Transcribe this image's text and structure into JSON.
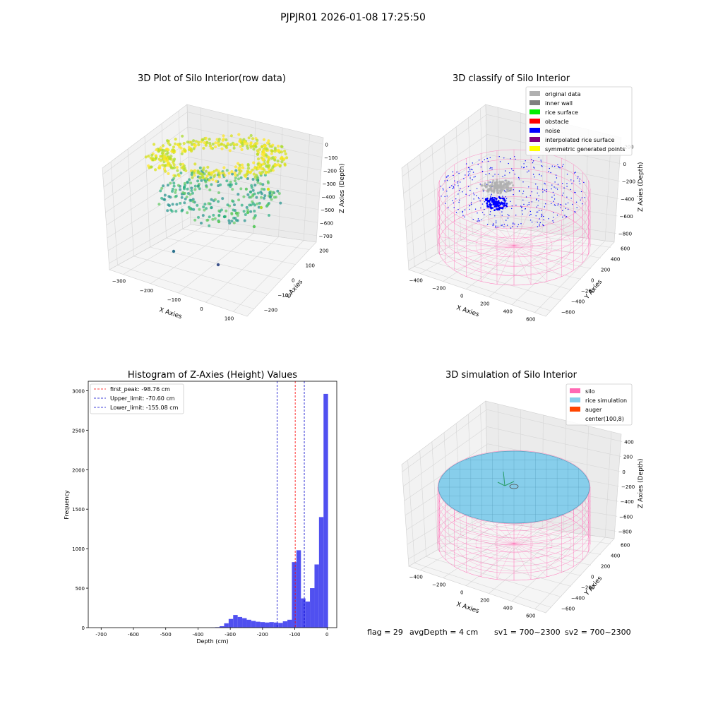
{
  "figure": {
    "suptitle": "PJPJR01 2026-01-08 17:25:50"
  },
  "colors": {
    "original_data": "#b0b0b0",
    "inner_wall": "#808080",
    "rice_surface": "#00ee00",
    "obstacle": "#ff0000",
    "noise": "#0000ff",
    "interpolated_rice_surface": "#800080",
    "symmetric_generated_points": "#ffff00",
    "silo": "#ff69b4",
    "rice_simulation": "#87ceeb",
    "auger": "#ff4500",
    "histogram_bar": "#5050f0"
  },
  "footer": {
    "flag": "flag = 29",
    "avg_depth": "avgDepth = 4 cm",
    "sv1": "sv1 = 700~2300",
    "sv2": "sv2 = 700~2300"
  },
  "chart_data": [
    {
      "type": "scatter",
      "title": "3D Plot of Silo Interior(row data)",
      "projection": "3d",
      "xlabel": "X Axies",
      "ylabel": "Y Axies",
      "zlabel": "Z Axies (Depth)",
      "x_ticks": [
        "−300",
        "−200",
        "−100",
        "0",
        "100"
      ],
      "y_ticks": [
        "−200",
        "−100",
        "0",
        "100",
        "200"
      ],
      "z_ticks": [
        "0",
        "−100",
        "−200",
        "−300",
        "−400",
        "−500",
        "−600",
        "−700"
      ],
      "xlim": [
        -330,
        150
      ],
      "ylim": [
        -250,
        230
      ],
      "zlim": [
        -760,
        30
      ],
      "colormap": "viridis (colored by depth)",
      "point_groups": [
        {
          "description": "upper ring near surface",
          "z_range": [
            -150,
            -20
          ],
          "color": "yellow"
        },
        {
          "description": "lower body",
          "z_range": [
            -350,
            -150
          ],
          "color": "green/teal"
        },
        {
          "description": "scattered outliers",
          "z_range": [
            -700,
            -450
          ],
          "color": "blue/purple"
        }
      ]
    },
    {
      "type": "scatter",
      "title": "3D classify of Silo Interior",
      "projection": "3d",
      "xlabel": "X Axies",
      "ylabel": "Y Axies",
      "zlabel": "Z Axies (Depth)",
      "x_ticks": [
        "−400",
        "−200",
        "0",
        "200",
        "400",
        "600"
      ],
      "y_ticks": [
        "−600",
        "−400",
        "−200",
        "0",
        "200",
        "400",
        "600"
      ],
      "z_ticks": [
        "200",
        "0",
        "−200",
        "−400",
        "−600",
        "−800"
      ],
      "visible_z_ticks": [
        "200",
        "0",
        "−200",
        "−400",
        "−600",
        "−800"
      ],
      "z_tick_partial": "00",
      "legend_position": "upper right",
      "legend": [
        {
          "label": "original data",
          "color_key": "original_data"
        },
        {
          "label": "inner wall",
          "color_key": "inner_wall"
        },
        {
          "label": "rice surface",
          "color_key": "rice_surface"
        },
        {
          "label": "obstacle",
          "color_key": "obstacle"
        },
        {
          "label": "noise",
          "color_key": "noise"
        },
        {
          "label": "interpolated rice surface",
          "color_key": "interpolated_rice_surface"
        },
        {
          "label": "symmetric generated points",
          "color_key": "symmetric_generated_points"
        }
      ]
    },
    {
      "type": "bar",
      "title": "Histogram of Z-Axies (Height) Values",
      "xlabel": "Depth (cm)",
      "ylabel": "Frequency",
      "xlim": [
        -740,
        30
      ],
      "ylim": [
        0,
        3120
      ],
      "x_ticks": [
        -700,
        -600,
        -500,
        -400,
        -300,
        -200,
        -100,
        0
      ],
      "y_ticks": [
        0,
        500,
        1000,
        1500,
        2000,
        2500,
        3000
      ],
      "bin_width": 14,
      "bins": [
        {
          "x": -354,
          "v": 2
        },
        {
          "x": -340,
          "v": 6
        },
        {
          "x": -326,
          "v": 18
        },
        {
          "x": -312,
          "v": 55
        },
        {
          "x": -298,
          "v": 110
        },
        {
          "x": -284,
          "v": 160
        },
        {
          "x": -270,
          "v": 135
        },
        {
          "x": -256,
          "v": 120
        },
        {
          "x": -242,
          "v": 100
        },
        {
          "x": -228,
          "v": 85
        },
        {
          "x": -214,
          "v": 75
        },
        {
          "x": -200,
          "v": 70
        },
        {
          "x": -186,
          "v": 65
        },
        {
          "x": -172,
          "v": 70
        },
        {
          "x": -158,
          "v": 65
        },
        {
          "x": -144,
          "v": 60
        },
        {
          "x": -130,
          "v": 80
        },
        {
          "x": -116,
          "v": 100
        },
        {
          "x": -102,
          "v": 830
        },
        {
          "x": -88,
          "v": 980
        },
        {
          "x": -74,
          "v": 370
        },
        {
          "x": -60,
          "v": 330
        },
        {
          "x": -46,
          "v": 500
        },
        {
          "x": -32,
          "v": 800
        },
        {
          "x": -18,
          "v": 1400
        },
        {
          "x": -4,
          "v": 2960
        }
      ],
      "lines": [
        {
          "label": "first_peak: -98.76 cm",
          "x": -98.76,
          "color": "#ff0000"
        },
        {
          "label": "Upper_limit: -70.60 cm",
          "x": -70.6,
          "color": "#0000cc"
        },
        {
          "label": "Lower_limit: -155.08 cm",
          "x": -155.08,
          "color": "#0000cc"
        }
      ],
      "legend_position": "upper left"
    },
    {
      "type": "scatter",
      "title": "3D simulation of Silo Interior",
      "projection": "3d",
      "xlabel": "X Axies",
      "ylabel": "Y Axies",
      "zlabel": "Z Axies (Depth)",
      "x_ticks": [
        "−400",
        "−200",
        "0",
        "200",
        "400",
        "600"
      ],
      "y_ticks": [
        "−600",
        "−400",
        "−200",
        "0",
        "200",
        "400",
        "600"
      ],
      "z_ticks": [
        "400",
        "200",
        "0",
        "−200",
        "−400",
        "−600",
        "−800"
      ],
      "legend_position": "upper right",
      "legend": [
        {
          "label": "silo",
          "color_key": "silo"
        },
        {
          "label": "rice simulation",
          "color_key": "rice_simulation"
        },
        {
          "label": "auger",
          "color_key": "auger"
        },
        {
          "label": "center(100,8)",
          "color_key": ""
        }
      ]
    }
  ]
}
